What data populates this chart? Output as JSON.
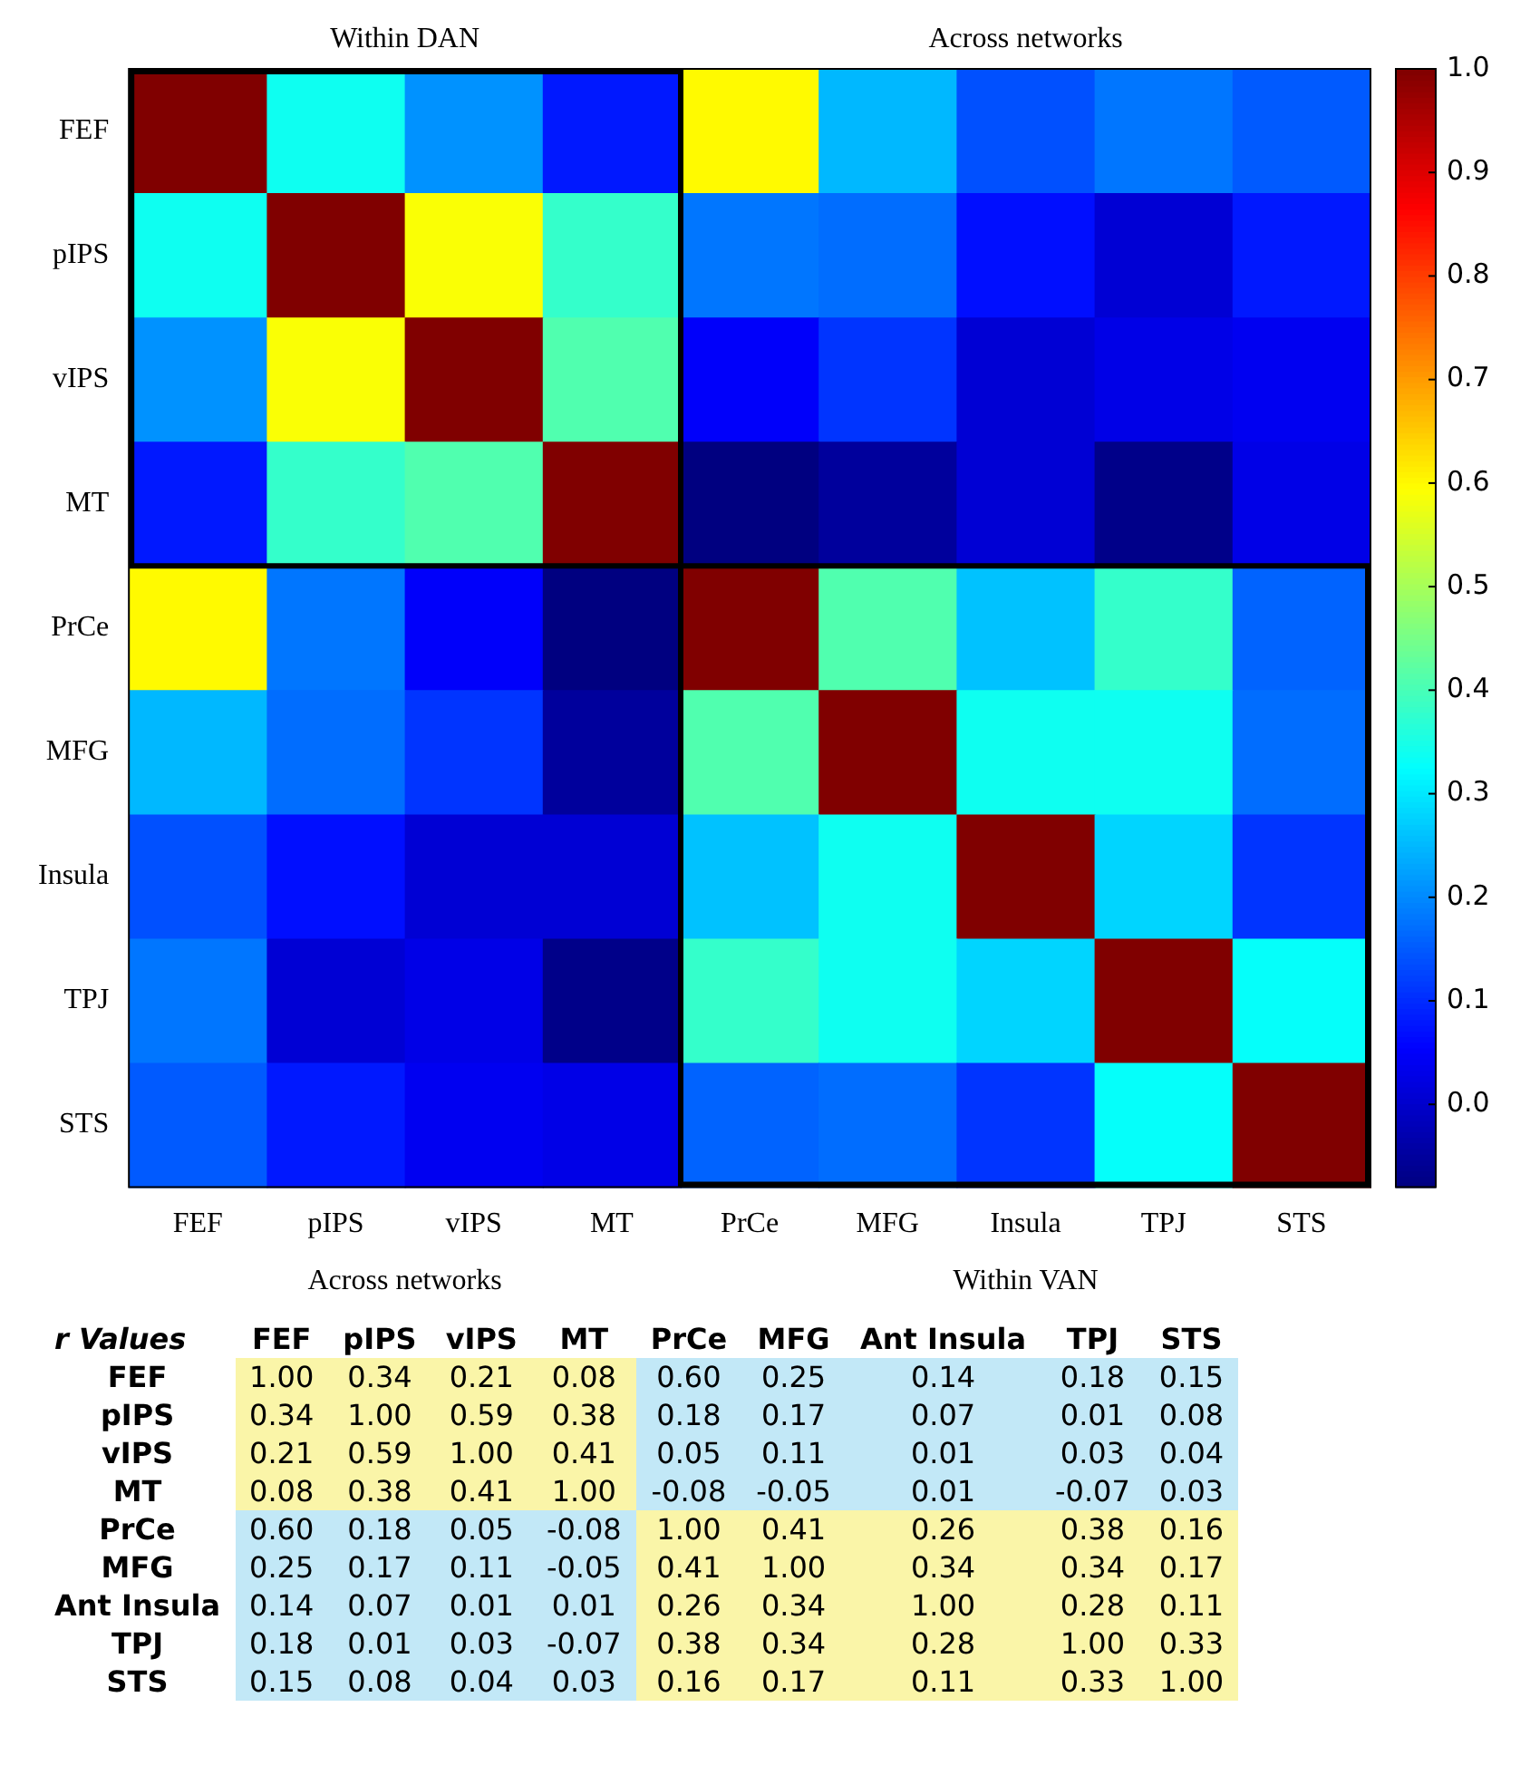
{
  "chart_data": [
    {
      "type": "heatmap",
      "categories": [
        "FEF",
        "pIPS",
        "vIPS",
        "MT",
        "PrCe",
        "MFG",
        "Insula",
        "TPJ",
        "STS"
      ],
      "y_categories": [
        "FEF",
        "pIPS",
        "vIPS",
        "MT",
        "PrCe",
        "MFG",
        "Insula",
        "TPJ",
        "STS"
      ],
      "cells": [
        [
          1.0,
          0.34,
          0.21,
          0.08,
          0.6,
          0.25,
          0.14,
          0.18,
          0.15
        ],
        [
          0.34,
          1.0,
          0.59,
          0.38,
          0.18,
          0.17,
          0.07,
          0.01,
          0.08
        ],
        [
          0.21,
          0.59,
          1.0,
          0.41,
          0.05,
          0.11,
          0.01,
          0.03,
          0.04
        ],
        [
          0.08,
          0.38,
          0.41,
          1.0,
          -0.08,
          -0.05,
          0.01,
          -0.07,
          0.03
        ],
        [
          0.6,
          0.18,
          0.05,
          -0.08,
          1.0,
          0.41,
          0.26,
          0.38,
          0.16
        ],
        [
          0.25,
          0.17,
          0.11,
          -0.05,
          0.41,
          1.0,
          0.34,
          0.34,
          0.17
        ],
        [
          0.14,
          0.07,
          0.01,
          0.01,
          0.26,
          0.34,
          1.0,
          0.28,
          0.11
        ],
        [
          0.18,
          0.01,
          0.03,
          -0.07,
          0.38,
          0.34,
          0.28,
          1.0,
          0.33
        ],
        [
          0.15,
          0.08,
          0.04,
          0.03,
          0.16,
          0.17,
          0.11,
          0.33,
          1.0
        ]
      ],
      "clim": [
        -0.08,
        1.0
      ],
      "cticks": [
        {
          "value": 0,
          "label": "0.0"
        },
        {
          "value": 0.1,
          "label": "0.1"
        },
        {
          "value": 0.2,
          "label": "0.2"
        },
        {
          "value": 0.3,
          "label": "0.3"
        },
        {
          "value": 0.4,
          "label": "0.4"
        },
        {
          "value": 0.5,
          "label": "0.5"
        },
        {
          "value": 0.6,
          "label": "0.6"
        },
        {
          "value": 0.7,
          "label": "0.7"
        },
        {
          "value": 0.8,
          "label": "0.8"
        },
        {
          "value": 0.9,
          "label": "0.9"
        },
        {
          "value": 1.0,
          "label": "1.0"
        }
      ],
      "annotations": [
        "Within DAN",
        "Across networks",
        "Across networks",
        "Within VAN"
      ]
    },
    {
      "type": "other",
      "title": "r Values",
      "categories": [
        "FEF",
        "pIPS",
        "vIPS",
        "MT",
        "PrCe",
        "MFG",
        "Ant Insula",
        "TPJ",
        "STS"
      ],
      "y_categories": [
        "FEF",
        "pIPS",
        "vIPS",
        "MT",
        "PrCe",
        "MFG",
        "Ant Insula",
        "TPJ",
        "STS"
      ],
      "cell_labels": [
        [
          "1.00",
          "0.34",
          "0.21",
          "0.08",
          "0.60",
          "0.25",
          "0.14",
          "0.18",
          "0.15"
        ],
        [
          "0.34",
          "1.00",
          "0.59",
          "0.38",
          "0.18",
          "0.17",
          "0.07",
          "0.01",
          "0.08"
        ],
        [
          "0.21",
          "0.59",
          "1.00",
          "0.41",
          "0.05",
          "0.11",
          "0.01",
          "0.03",
          "0.04"
        ],
        [
          "0.08",
          "0.38",
          "0.41",
          "1.00",
          "-0.08",
          "-0.05",
          "0.01",
          "-0.07",
          "0.03"
        ],
        [
          "0.60",
          "0.18",
          "0.05",
          "-0.08",
          "1.00",
          "0.41",
          "0.26",
          "0.38",
          "0.16"
        ],
        [
          "0.25",
          "0.17",
          "0.11",
          "-0.05",
          "0.41",
          "1.00",
          "0.34",
          "0.34",
          "0.17"
        ],
        [
          "0.14",
          "0.07",
          "0.01",
          "0.01",
          "0.26",
          "0.34",
          "1.00",
          "0.28",
          "0.11"
        ],
        [
          "0.18",
          "0.01",
          "0.03",
          "-0.07",
          "0.38",
          "0.34",
          "0.28",
          "1.00",
          "0.33"
        ],
        [
          "0.15",
          "0.08",
          "0.04",
          "0.03",
          "0.16",
          "0.17",
          "0.11",
          "0.33",
          "1.00"
        ]
      ],
      "colors": [
        [
          "#faf5a8",
          "#faf5a8",
          "#faf5a8",
          "#faf5a8",
          "#c2e8f7",
          "#c2e8f7",
          "#c2e8f7",
          "#c2e8f7",
          "#c2e8f7"
        ],
        [
          "#faf5a8",
          "#faf5a8",
          "#faf5a8",
          "#faf5a8",
          "#c2e8f7",
          "#c2e8f7",
          "#c2e8f7",
          "#c2e8f7",
          "#c2e8f7"
        ],
        [
          "#faf5a8",
          "#faf5a8",
          "#faf5a8",
          "#faf5a8",
          "#c2e8f7",
          "#c2e8f7",
          "#c2e8f7",
          "#c2e8f7",
          "#c2e8f7"
        ],
        [
          "#faf5a8",
          "#faf5a8",
          "#faf5a8",
          "#faf5a8",
          "#c2e8f7",
          "#c2e8f7",
          "#c2e8f7",
          "#c2e8f7",
          "#c2e8f7"
        ],
        [
          "#c2e8f7",
          "#c2e8f7",
          "#c2e8f7",
          "#c2e8f7",
          "#faf5a8",
          "#faf5a8",
          "#faf5a8",
          "#faf5a8",
          "#faf5a8"
        ],
        [
          "#c2e8f7",
          "#c2e8f7",
          "#c2e8f7",
          "#c2e8f7",
          "#faf5a8",
          "#faf5a8",
          "#faf5a8",
          "#faf5a8",
          "#faf5a8"
        ],
        [
          "#c2e8f7",
          "#c2e8f7",
          "#c2e8f7",
          "#c2e8f7",
          "#faf5a8",
          "#faf5a8",
          "#faf5a8",
          "#faf5a8",
          "#faf5a8"
        ],
        [
          "#c2e8f7",
          "#c2e8f7",
          "#c2e8f7",
          "#c2e8f7",
          "#faf5a8",
          "#faf5a8",
          "#faf5a8",
          "#faf5a8",
          "#faf5a8"
        ],
        [
          "#c2e8f7",
          "#c2e8f7",
          "#c2e8f7",
          "#c2e8f7",
          "#faf5a8",
          "#faf5a8",
          "#faf5a8",
          "#faf5a8",
          "#faf5a8"
        ]
      ]
    }
  ]
}
